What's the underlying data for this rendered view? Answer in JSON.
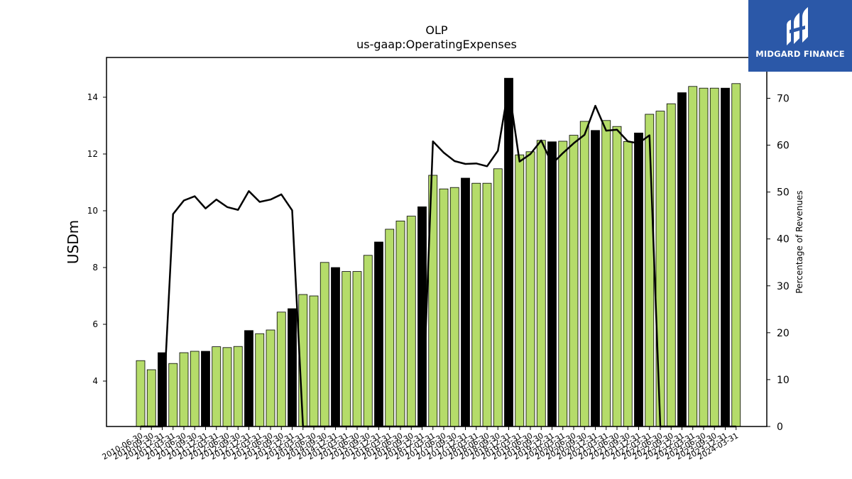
{
  "brand": {
    "name": "MIDGARD FINANCE",
    "logo_icon": "midgard-logo-icon",
    "bg_color": "#2b58a8"
  },
  "chart_data": {
    "type": "bar",
    "title": "OLP",
    "subtitle": "us-gaap:OperatingExpenses",
    "ylabel": "USDm",
    "y2label": "Percentage of Revenues",
    "ylim": [
      2.4,
      15.4
    ],
    "y2lim": [
      0,
      78.7
    ],
    "yticks": [
      4,
      6,
      8,
      10,
      12,
      14
    ],
    "y2ticks": [
      0,
      10,
      20,
      30,
      40,
      50,
      60,
      70
    ],
    "colors": {
      "quarter_bar": "#b5dc6a",
      "year_end_bar": "#000000",
      "line": "#000000"
    },
    "categories": [
      "2010-06-30",
      "2010-09-30",
      "2010-12-31",
      "2011-03-31",
      "2011-06-30",
      "2011-09-30",
      "2011-12-31",
      "2012-03-31",
      "2012-06-30",
      "2012-09-30",
      "2012-12-31",
      "2013-03-31",
      "2013-06-30",
      "2013-09-30",
      "2013-12-31",
      "2014-03-31",
      "2014-06-30",
      "2014-09-30",
      "2014-12-31",
      "2015-03-31",
      "2015-06-30",
      "2015-09-30",
      "2015-12-31",
      "2016-03-31",
      "2016-06-30",
      "2016-09-30",
      "2016-12-31",
      "2017-03-31",
      "2017-06-30",
      "2017-09-30",
      "2017-12-31",
      "2018-03-31",
      "2018-06-30",
      "2018-09-30",
      "2018-12-31",
      "2019-03-31",
      "2019-06-30",
      "2019-09-30",
      "2019-12-31",
      "2020-03-31",
      "2020-06-30",
      "2020-09-30",
      "2020-12-31",
      "2021-03-31",
      "2021-06-30",
      "2021-09-30",
      "2021-12-31",
      "2022-03-31",
      "2022-06-30",
      "2022-09-30",
      "2022-12-31",
      "2023-03-31",
      "2023-06-30",
      "2023-09-30",
      "2023-12-31",
      "2024-03-31"
    ],
    "series": [
      {
        "type": "bar",
        "axis": "left",
        "values": [
          4.72,
          4.4,
          5.0,
          4.62,
          5.0,
          5.05,
          5.05,
          5.21,
          5.18,
          5.22,
          5.78,
          5.67,
          5.8,
          6.43,
          6.55,
          7.05,
          7.0,
          8.18,
          8.0,
          7.86,
          7.86,
          8.43,
          8.9,
          9.35,
          9.64,
          9.81,
          10.14,
          11.25,
          10.77,
          10.82,
          11.15,
          10.97,
          10.97,
          11.48,
          14.67,
          11.97,
          12.08,
          12.48,
          12.43,
          12.45,
          12.66,
          13.15,
          12.83,
          13.18,
          12.97,
          12.44,
          12.74,
          13.4,
          13.51,
          13.77,
          14.16,
          14.38,
          14.32,
          14.32,
          14.32,
          14.48
        ],
        "year_end": [
          false,
          false,
          true,
          false,
          false,
          false,
          true,
          false,
          false,
          false,
          true,
          false,
          false,
          false,
          true,
          false,
          false,
          false,
          true,
          false,
          false,
          false,
          true,
          false,
          false,
          false,
          true,
          false,
          false,
          false,
          true,
          false,
          false,
          false,
          true,
          false,
          false,
          false,
          true,
          false,
          false,
          false,
          true,
          false,
          false,
          false,
          true,
          false,
          false,
          false,
          true,
          false,
          false,
          false,
          true,
          false
        ]
      },
      {
        "type": "line",
        "axis": "right",
        "values": [
          0,
          0,
          0,
          45.3,
          48.2,
          49.1,
          46.5,
          48.4,
          46.8,
          46.2,
          50.2,
          47.9,
          48.4,
          49.5,
          46.1,
          0,
          0,
          0,
          0,
          0,
          0,
          0,
          0,
          0,
          0,
          0,
          0,
          60.8,
          58.4,
          56.6,
          56.0,
          56.1,
          55.5,
          58.8,
          72.5,
          56.5,
          58.1,
          61.0,
          56.0,
          58.3,
          60.4,
          62.2,
          68.4,
          63.1,
          63.3,
          60.8,
          60.4,
          62.1,
          0,
          0,
          0,
          0,
          0,
          0,
          0,
          0
        ]
      }
    ]
  }
}
